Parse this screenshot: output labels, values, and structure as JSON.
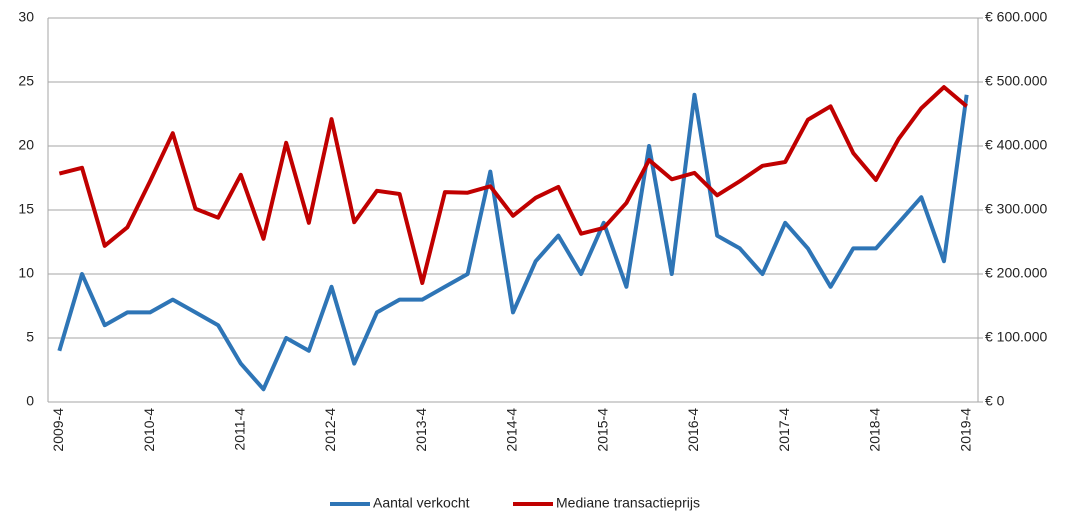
{
  "chart_data": {
    "type": "line",
    "categories": [
      "2009-4",
      null,
      null,
      null,
      "2010-4",
      null,
      null,
      null,
      "2011-4",
      null,
      null,
      null,
      "2012-4",
      null,
      null,
      null,
      "2013-4",
      null,
      null,
      null,
      "2014-4",
      null,
      null,
      null,
      "2015-4",
      null,
      null,
      null,
      "2016-4",
      null,
      null,
      null,
      "2017-4",
      null,
      null,
      null,
      "2018-4",
      null,
      null,
      null,
      "2019-4"
    ],
    "series": [
      {
        "name": "Aantal verkocht",
        "color": "#2e75b6",
        "values": [
          4,
          10,
          6,
          7,
          7,
          8,
          7,
          6,
          3,
          1,
          5,
          4,
          9,
          3,
          7,
          8,
          8,
          9,
          10,
          18,
          7,
          11,
          13,
          10,
          14,
          9,
          20,
          10,
          24,
          13,
          12,
          10,
          14,
          12,
          9,
          12,
          12,
          14,
          16,
          11,
          24
        ]
      },
      {
        "name": "Mediane transactieprijs",
        "color": "#c00000",
        "axis": "y2",
        "values": [
          357000,
          366000,
          244000,
          273000,
          345000,
          420000,
          302000,
          288000,
          355000,
          255000,
          405000,
          280000,
          442000,
          281000,
          330000,
          325000,
          186000,
          328000,
          327000,
          337000,
          291000,
          319000,
          336000,
          263000,
          272000,
          311000,
          378000,
          348000,
          358000,
          323000,
          345000,
          369000,
          375000,
          441000,
          462000,
          389000,
          347000,
          411000,
          459000,
          492000,
          462000
        ]
      }
    ],
    "ylim": [
      0,
      30
    ],
    "yticks": [
      0,
      5,
      10,
      15,
      20,
      25,
      30
    ],
    "y2lim": [
      0,
      600000
    ],
    "y2ticks": [
      {
        "value": 0,
        "label": "€ 0"
      },
      {
        "value": 100000,
        "label": "€ 100.000"
      },
      {
        "value": 200000,
        "label": "€ 200.000"
      },
      {
        "value": 300000,
        "label": "€ 300.000"
      },
      {
        "value": 400000,
        "label": "€ 400.000"
      },
      {
        "value": 500000,
        "label": "€ 500.000"
      },
      {
        "value": 600000,
        "label": "€ 600.000"
      }
    ],
    "grid": true,
    "legend": "bottom"
  }
}
